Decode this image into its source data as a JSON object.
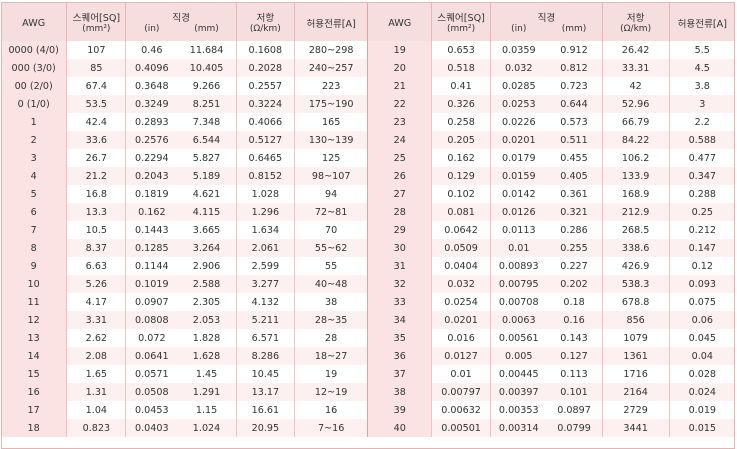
{
  "headers": {
    "awg": "AWG",
    "area": "스퀘어[SQ]",
    "area_unit": "(mm²)",
    "diameter": "직경",
    "in": "(in)",
    "mm": "(mm)",
    "resistance": "저항",
    "resistance_unit": "(Ω/km)",
    "current": "허용전류[A]"
  },
  "left_rows": [
    [
      "0000 (4/0)",
      "107",
      "0.46",
      "11.684",
      "0.1608",
      "280~298"
    ],
    [
      "000 (3/0)",
      "85",
      "0.4096",
      "10.405",
      "0.2028",
      "240~257"
    ],
    [
      "00 (2/0)",
      "67.4",
      "0.3648",
      "9.266",
      "0.2557",
      "223"
    ],
    [
      "0 (1/0)",
      "53.5",
      "0.3249",
      "8.251",
      "0.3224",
      "175~190"
    ],
    [
      "1",
      "42.4",
      "0.2893",
      "7.348",
      "0.4066",
      "165"
    ],
    [
      "2",
      "33.6",
      "0.2576",
      "6.544",
      "0.5127",
      "130~139"
    ],
    [
      "3",
      "26.7",
      "0.2294",
      "5.827",
      "0.6465",
      "125"
    ],
    [
      "4",
      "21.2",
      "0.2043",
      "5.189",
      "0.8152",
      "98~107"
    ],
    [
      "5",
      "16.8",
      "0.1819",
      "4.621",
      "1.028",
      "94"
    ],
    [
      "6",
      "13.3",
      "0.162",
      "4.115",
      "1.296",
      "72~81"
    ],
    [
      "7",
      "10.5",
      "0.1443",
      "3.665",
      "1.634",
      "70"
    ],
    [
      "8",
      "8.37",
      "0.1285",
      "3.264",
      "2.061",
      "55~62"
    ],
    [
      "9",
      "6.63",
      "0.1144",
      "2.906",
      "2.599",
      "55"
    ],
    [
      "10",
      "5.26",
      "0.1019",
      "2.588",
      "3.277",
      "40~48"
    ],
    [
      "11",
      "4.17",
      "0.0907",
      "2.305",
      "4.132",
      "38"
    ],
    [
      "12",
      "3.31",
      "0.0808",
      "2.053",
      "5.211",
      "28~35"
    ],
    [
      "13",
      "2.62",
      "0.072",
      "1.828",
      "6.571",
      "28"
    ],
    [
      "14",
      "2.08",
      "0.0641",
      "1.628",
      "8.286",
      "18~27"
    ],
    [
      "15",
      "1.65",
      "0.0571",
      "1.45",
      "10.45",
      "19"
    ],
    [
      "16",
      "1.31",
      "0.0508",
      "1.291",
      "13.17",
      "12~19"
    ],
    [
      "17",
      "1.04",
      "0.0453",
      "1.15",
      "16.61",
      "16"
    ],
    [
      "18",
      "0.823",
      "0.0403",
      "1.024",
      "20.95",
      "7~16"
    ]
  ],
  "right_rows": [
    [
      "19",
      "0.653",
      "0.0359",
      "0.912",
      "26.42",
      "5.5"
    ],
    [
      "20",
      "0.518",
      "0.032",
      "0.812",
      "33.31",
      "4.5"
    ],
    [
      "21",
      "0.41",
      "0.0285",
      "0.723",
      "42",
      "3.8"
    ],
    [
      "22",
      "0.326",
      "0.0253",
      "0.644",
      "52.96",
      "3"
    ],
    [
      "23",
      "0.258",
      "0.0226",
      "0.573",
      "66.79",
      "2.2"
    ],
    [
      "24",
      "0.205",
      "0.0201",
      "0.511",
      "84.22",
      "0.588"
    ],
    [
      "25",
      "0.162",
      "0.0179",
      "0.455",
      "106.2",
      "0.477"
    ],
    [
      "26",
      "0.129",
      "0.0159",
      "0.405",
      "133.9",
      "0.347"
    ],
    [
      "27",
      "0.102",
      "0.0142",
      "0.361",
      "168.9",
      "0.288"
    ],
    [
      "28",
      "0.081",
      "0.0126",
      "0.321",
      "212.9",
      "0.25"
    ],
    [
      "29",
      "0.0642",
      "0.0113",
      "0.286",
      "268.5",
      "0.212"
    ],
    [
      "30",
      "0.0509",
      "0.01",
      "0.255",
      "338.6",
      "0.147"
    ],
    [
      "31",
      "0.0404",
      "0.00893",
      "0.227",
      "426.9",
      "0.12"
    ],
    [
      "32",
      "0.032",
      "0.00795",
      "0.202",
      "538.3",
      "0.093"
    ],
    [
      "33",
      "0.0254",
      "0.00708",
      "0.18",
      "678.8",
      "0.075"
    ],
    [
      "34",
      "0.0201",
      "0.0063",
      "0.16",
      "856",
      "0.06"
    ],
    [
      "35",
      "0.016",
      "0.00561",
      "0.143",
      "1079",
      "0.045"
    ],
    [
      "36",
      "0.0127",
      "0.005",
      "0.127",
      "1361",
      "0.04"
    ],
    [
      "37",
      "0.01",
      "0.00445",
      "0.113",
      "1716",
      "0.028"
    ],
    [
      "38",
      "0.00797",
      "0.00397",
      "0.101",
      "2164",
      "0.024"
    ],
    [
      "39",
      "0.00632",
      "0.00353",
      "0.0897",
      "2729",
      "0.019"
    ],
    [
      "40",
      "0.00501",
      "0.00314",
      "0.0799",
      "3441",
      "0.015"
    ]
  ]
}
